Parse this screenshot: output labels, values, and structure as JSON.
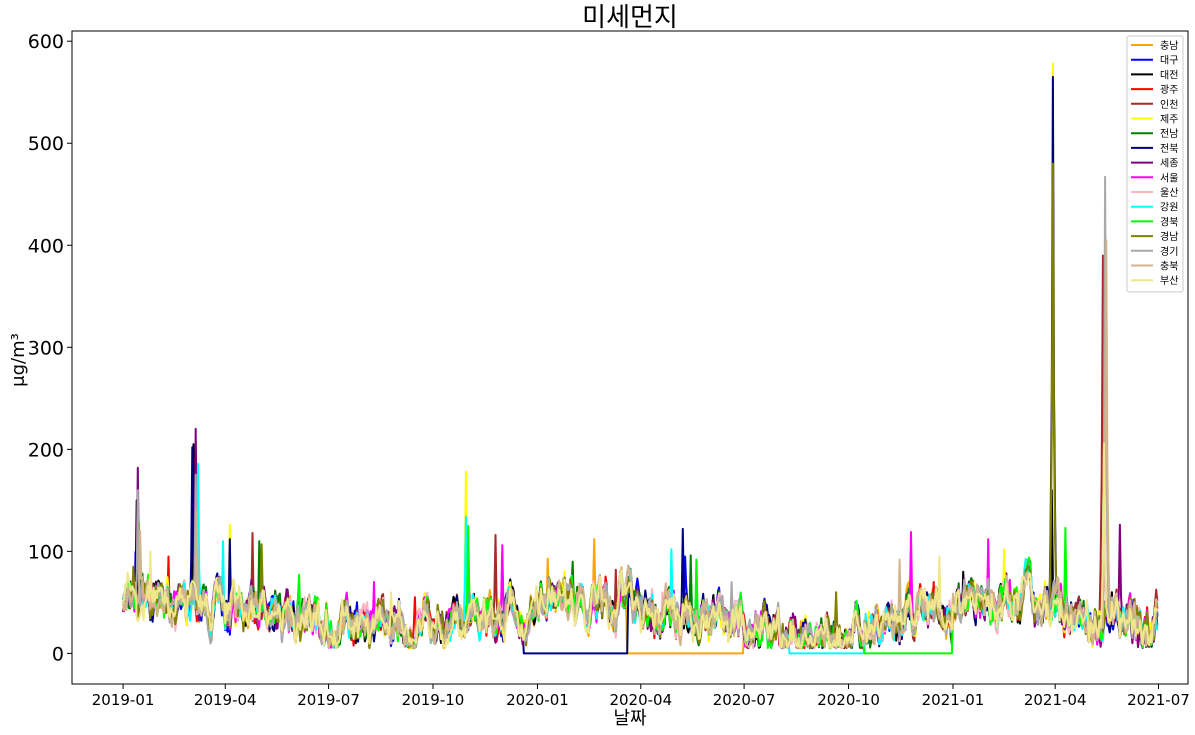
{
  "chart_data": {
    "type": "line",
    "title": "미세먼지",
    "xlabel": "날짜",
    "ylabel": "μg/m³",
    "x_start": "2019-01-01",
    "x_end": "2021-06-30",
    "xlim": [
      "2018-11-17",
      "2021-07-27"
    ],
    "ylim": [
      -30,
      610
    ],
    "xticks": [
      {
        "date": "2019-01-01",
        "label": "2019-01"
      },
      {
        "date": "2019-04-01",
        "label": "2019-04"
      },
      {
        "date": "2019-07-01",
        "label": "2019-07"
      },
      {
        "date": "2019-10-01",
        "label": "2019-10"
      },
      {
        "date": "2020-01-01",
        "label": "2020-01"
      },
      {
        "date": "2020-04-01",
        "label": "2020-04"
      },
      {
        "date": "2020-07-01",
        "label": "2020-07"
      },
      {
        "date": "2020-10-01",
        "label": "2020-10"
      },
      {
        "date": "2021-01-01",
        "label": "2021-01"
      },
      {
        "date": "2021-04-01",
        "label": "2021-04"
      },
      {
        "date": "2021-07-01",
        "label": "2021-07"
      }
    ],
    "yticks": [
      0,
      100,
      200,
      300,
      400,
      500,
      600
    ],
    "grid": false,
    "legend": "top-right",
    "series": [
      {
        "name": "충남",
        "color": "#ffa500",
        "peaks": [
          [
            "2019-01-15",
            128
          ],
          [
            "2019-11-20",
            62
          ],
          [
            "2020-01-10",
            93
          ],
          [
            "2020-02-20",
            112
          ],
          [
            "2020-04-05",
            75
          ]
        ],
        "gaps": [
          [
            "2020-03-20",
            "2020-06-30"
          ]
        ]
      },
      {
        "name": "대구",
        "color": "#0000ff",
        "peaks": [
          [
            "2019-01-12",
            100
          ],
          [
            "2019-03-05",
            140
          ],
          [
            "2020-05-10",
            95
          ],
          [
            "2021-03-28",
            80
          ]
        ],
        "gaps": []
      },
      {
        "name": "대전",
        "color": "#000000",
        "peaks": [
          [
            "2019-01-13",
            150
          ],
          [
            "2019-03-04",
            205
          ],
          [
            "2021-01-10",
            80
          ],
          [
            "2021-03-29",
            160
          ]
        ],
        "gaps": []
      },
      {
        "name": "광주",
        "color": "#ff0000",
        "peaks": [
          [
            "2019-02-10",
            95
          ],
          [
            "2019-09-15",
            55
          ],
          [
            "2020-12-15",
            70
          ],
          [
            "2021-05-12",
            90
          ]
        ],
        "gaps": []
      },
      {
        "name": "인천",
        "color": "#a52a2a",
        "peaks": [
          [
            "2019-04-25",
            118
          ],
          [
            "2019-11-25",
            116
          ],
          [
            "2020-03-10",
            82
          ],
          [
            "2021-05-13",
            390
          ]
        ],
        "gaps": []
      },
      {
        "name": "제주",
        "color": "#ffff00",
        "peaks": [
          [
            "2019-04-05",
            126
          ],
          [
            "2019-10-30",
            178
          ],
          [
            "2021-02-15",
            102
          ],
          [
            "2021-03-30",
            578
          ]
        ],
        "gaps": []
      },
      {
        "name": "전남",
        "color": "#008000",
        "peaks": [
          [
            "2019-05-01",
            110
          ],
          [
            "2020-02-01",
            90
          ],
          [
            "2020-05-15",
            96
          ]
        ],
        "gaps": []
      },
      {
        "name": "전북",
        "color": "#000080",
        "peaks": [
          [
            "2019-03-03",
            202
          ],
          [
            "2019-04-05",
            112
          ],
          [
            "2020-05-08",
            122
          ],
          [
            "2021-03-30",
            565
          ]
        ],
        "gaps": [
          [
            "2019-12-20",
            "2020-03-20"
          ]
        ]
      },
      {
        "name": "세종",
        "color": "#800080",
        "peaks": [
          [
            "2019-01-14",
            182
          ],
          [
            "2019-03-06",
            220
          ],
          [
            "2021-05-28",
            126
          ]
        ],
        "gaps": []
      },
      {
        "name": "서울",
        "color": "#ff00ff",
        "peaks": [
          [
            "2019-08-10",
            70
          ],
          [
            "2019-12-01",
            106
          ],
          [
            "2020-11-25",
            119
          ],
          [
            "2021-02-01",
            112
          ]
        ],
        "gaps": []
      },
      {
        "name": "울산",
        "color": "#ffb6c1",
        "peaks": [
          [
            "2019-01-20",
            70
          ],
          [
            "2019-06-10",
            55
          ],
          [
            "2020-04-20",
            60
          ]
        ],
        "gaps": []
      },
      {
        "name": "강원",
        "color": "#00ffff",
        "peaks": [
          [
            "2019-03-08",
            186
          ],
          [
            "2019-03-30",
            110
          ],
          [
            "2019-10-30",
            134
          ],
          [
            "2020-04-28",
            102
          ]
        ],
        "gaps": [
          [
            "2020-08-10",
            "2020-10-15"
          ]
        ]
      },
      {
        "name": "경북",
        "color": "#00ff00",
        "peaks": [
          [
            "2019-06-05",
            77
          ],
          [
            "2019-11-01",
            125
          ],
          [
            "2020-05-20",
            92
          ],
          [
            "2021-04-10",
            123
          ]
        ],
        "gaps": [
          [
            "2020-10-15",
            "2020-12-31"
          ]
        ]
      },
      {
        "name": "경남",
        "color": "#808000",
        "peaks": [
          [
            "2019-01-10",
            85
          ],
          [
            "2019-05-03",
            107
          ],
          [
            "2020-09-20",
            60
          ],
          [
            "2021-03-30",
            480
          ]
        ],
        "gaps": []
      },
      {
        "name": "경기",
        "color": "#a9a9a9",
        "peaks": [
          [
            "2019-01-14",
            160
          ],
          [
            "2019-03-06",
            175
          ],
          [
            "2020-06-20",
            70
          ],
          [
            "2021-05-15",
            467
          ]
        ],
        "gaps": []
      },
      {
        "name": "충북",
        "color": "#d2b48c",
        "peaks": [
          [
            "2019-01-16",
            120
          ],
          [
            "2019-03-07",
            140
          ],
          [
            "2020-11-15",
            92
          ],
          [
            "2021-05-16",
            405
          ]
        ],
        "gaps": []
      },
      {
        "name": "부산",
        "color": "#f0e68c",
        "peaks": [
          [
            "2019-01-25",
            100
          ],
          [
            "2019-08-25",
            60
          ],
          [
            "2020-12-20",
            95
          ],
          [
            "2021-05-14",
            206
          ]
        ],
        "gaps": []
      }
    ]
  }
}
